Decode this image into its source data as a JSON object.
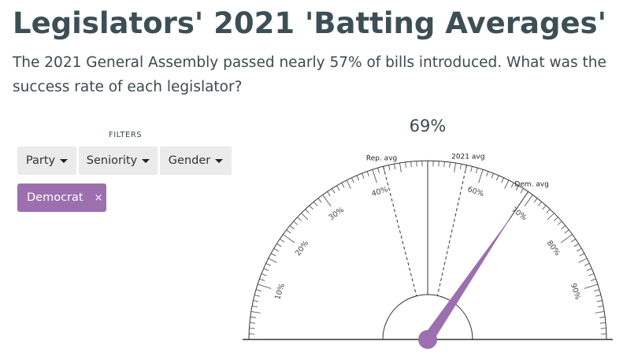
{
  "header": {
    "title": "Legislators' 2021 'Batting Averages'",
    "subtitle": "The 2021 General Assembly passed nearly 57% of bills introduced. What was the success rate of each legislator?"
  },
  "filters": {
    "label": "FILTERS",
    "buttons": [
      {
        "label": "Party"
      },
      {
        "label": "Seniority"
      },
      {
        "label": "Gender"
      }
    ],
    "active_chip": {
      "label": "Democrat",
      "remove": "×"
    }
  },
  "chart_data": {
    "type": "gauge",
    "readout": "69%",
    "value": 69,
    "range": [
      0,
      100
    ],
    "tick_labels": [
      "10%",
      "20%",
      "30%",
      "40%",
      "60%",
      "70%",
      "80%",
      "90%"
    ],
    "tick_label_values": [
      10,
      20,
      30,
      40,
      60,
      70,
      80,
      90
    ],
    "reference_lines": [
      {
        "label": "Rep. avg",
        "value": 42,
        "style": "dashed"
      },
      {
        "label": "2021 avg",
        "value": 57,
        "style": "dashed"
      },
      {
        "label": "Dem. avg",
        "value": 69,
        "style": "solid"
      }
    ],
    "midline_value": 50,
    "needle_color": "#9c6fae"
  }
}
